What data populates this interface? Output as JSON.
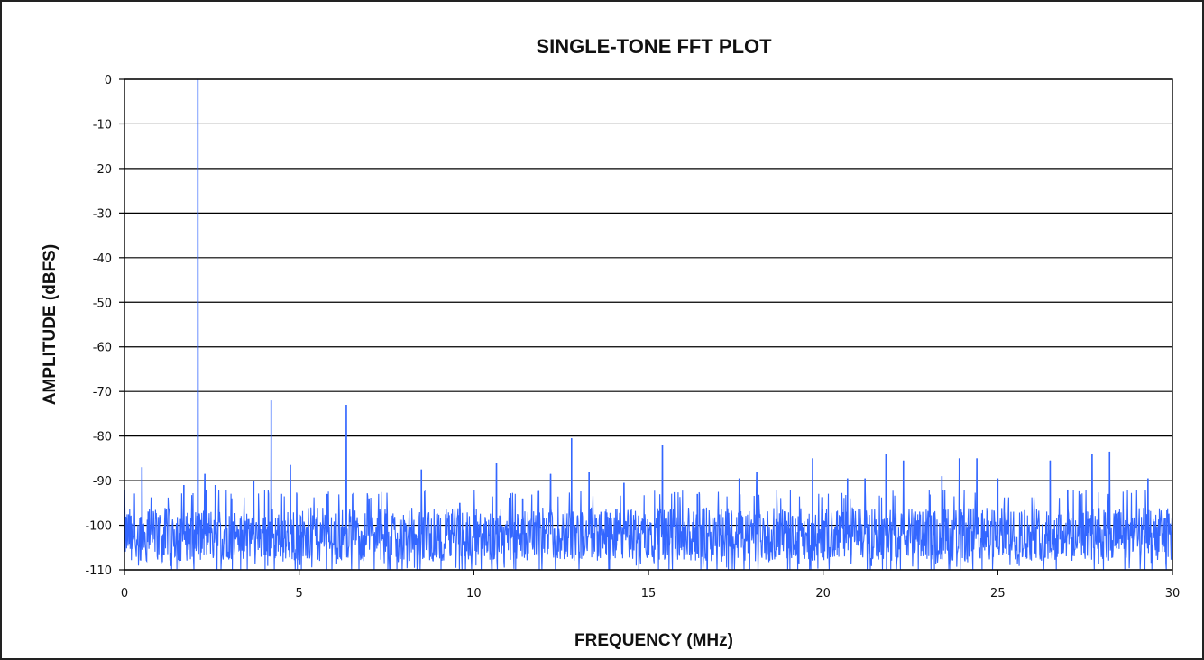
{
  "chart_data": {
    "type": "line",
    "title": "SINGLE-TONE FFT PLOT",
    "xlabel": "FREQUENCY (MHz)",
    "ylabel": "AMPLITUDE (dBFS)",
    "xlim": [
      0,
      30
    ],
    "ylim": [
      -110,
      0
    ],
    "x_ticks": [
      0,
      5,
      10,
      15,
      20,
      25,
      30
    ],
    "y_ticks": [
      0,
      -10,
      -20,
      -30,
      -40,
      -50,
      -60,
      -70,
      -80,
      -90,
      -100,
      -110
    ],
    "x_tick_labels": [
      "0",
      "5",
      "10",
      "15",
      "20",
      "25",
      "30"
    ],
    "y_tick_labels": [
      "0",
      "-10",
      "-20",
      "-30",
      "-40",
      "-50",
      "-60",
      "-70",
      "-80",
      "-90",
      "-100",
      "-110"
    ],
    "grid": {
      "horizontal": true,
      "vertical": false
    },
    "legend": "none",
    "line_color": "#3366ff",
    "noise_floor_dbfs": -102,
    "noise_range_dbfs": [
      -110,
      -93
    ],
    "series": [
      {
        "name": "",
        "x": [
          2.1,
          4.2,
          6.35,
          0.5,
          4.75,
          12.8,
          15.4,
          28.2,
          27.7,
          21.8,
          24.4,
          23.9,
          22.3,
          19.7,
          26.5,
          10.65,
          8.5,
          13.3,
          18.1,
          25.0,
          29.3,
          17.6,
          21.2,
          20.7,
          23.4,
          12.2,
          14.3,
          3.7,
          2.3,
          2.6,
          1.7,
          0.0,
          5.8,
          7.0,
          9.6,
          11.4,
          16.4,
          27.0
        ],
        "y": [
          0,
          -72,
          -73,
          -87,
          -86.5,
          -80.5,
          -82,
          -83.5,
          -84,
          -84,
          -85,
          -85,
          -85.5,
          -85,
          -85.5,
          -86,
          -87.5,
          -88,
          -88,
          -89.5,
          -89.5,
          -89.5,
          -89.5,
          -89.5,
          -89,
          -88.5,
          -90.5,
          -90,
          -88.5,
          -91,
          -91,
          -92,
          -93,
          -94,
          -95,
          -94,
          -93,
          -92
        ]
      }
    ]
  }
}
